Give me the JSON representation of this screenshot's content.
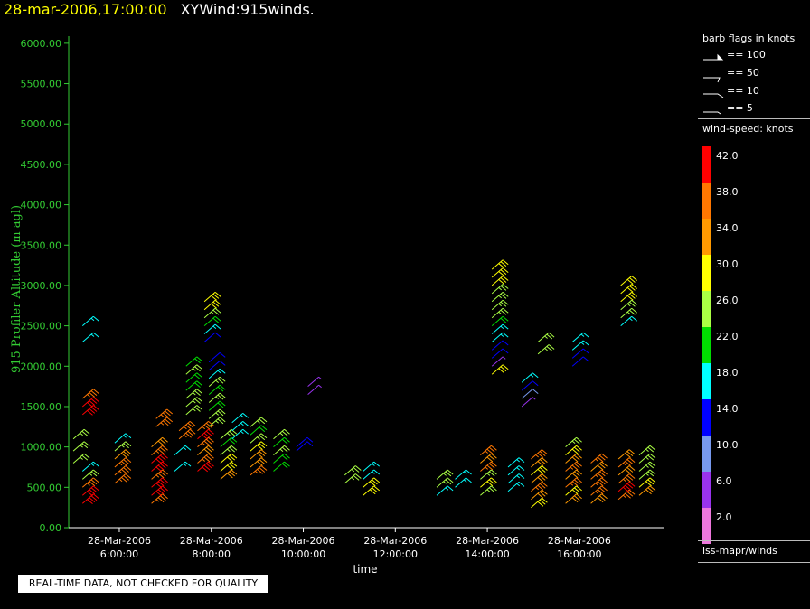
{
  "header": {
    "timestamp": "28-mar-2006,17:00:00",
    "title": "XYWind:915winds."
  },
  "footer_notice": "REAL-TIME DATA, NOT CHECKED FOR QUALITY",
  "legend": {
    "barb_title": "barb flags in knots",
    "barb_entries": [
      "== 100",
      "== 50",
      "== 10",
      "== 5"
    ],
    "speed_title": "wind-speed: knots",
    "speed_labels": [
      "42.0",
      "38.0",
      "34.0",
      "30.0",
      "26.0",
      "22.0",
      "18.0",
      "14.0",
      "10.0",
      "6.0",
      "2.0"
    ],
    "speed_colors": [
      "#ff0000",
      "#ff7700",
      "#ff9900",
      "#ffff00",
      "#aaff44",
      "#00dd00",
      "#00ffff",
      "#0000ff",
      "#7799ee",
      "#9933ee",
      "#ee77dd"
    ],
    "source": "iss-mapr/winds"
  },
  "chart_data": {
    "type": "scatter",
    "title": "",
    "xlabel": "time",
    "ylabel": "915 Profiler Altitude (m agl)",
    "ylim": [
      0,
      6200
    ],
    "xlim_hours": [
      4.9,
      17.85
    ],
    "y_ticks": [
      "0.00",
      "500.00",
      "1000.00",
      "1500.00",
      "2000.00",
      "2500.00",
      "3000.00",
      "3500.00",
      "4000.00",
      "4500.00",
      "5000.00",
      "5500.00",
      "6000.00"
    ],
    "x_ticks": [
      {
        "hour": 6,
        "date": "28-Mar-2006",
        "time": "6:00:00"
      },
      {
        "hour": 8,
        "date": "28-Mar-2006",
        "time": "8:00:00"
      },
      {
        "hour": 10,
        "date": "28-Mar-2006",
        "time": "10:00:00"
      },
      {
        "hour": 12,
        "date": "28-Mar-2006",
        "time": "12:00:00"
      },
      {
        "hour": 14,
        "date": "28-Mar-2006",
        "time": "14:00:00"
      },
      {
        "hour": 16,
        "date": "28-Mar-2006",
        "time": "16:00:00"
      }
    ],
    "profiles": [
      {
        "t": 5.0,
        "alts": [
          800,
          950,
          1100
        ],
        "spd": [
          26,
          26,
          26
        ]
      },
      {
        "t": 5.2,
        "alts": [
          300,
          400,
          500,
          600,
          700
        ],
        "spd": [
          42,
          42,
          38,
          26,
          18
        ]
      },
      {
        "t": 5.2,
        "alts": [
          1400,
          1500,
          1600
        ],
        "spd": [
          42,
          42,
          38
        ]
      },
      {
        "t": 5.2,
        "alts": [
          2300,
          2500
        ],
        "spd": [
          18,
          18
        ]
      },
      {
        "t": 5.9,
        "alts": [
          550,
          650,
          750,
          850,
          950,
          1050
        ],
        "spd": [
          38,
          38,
          38,
          34,
          26,
          18
        ]
      },
      {
        "t": 6.7,
        "alts": [
          300,
          400,
          500,
          600,
          700,
          800,
          900,
          1000
        ],
        "spd": [
          38,
          42,
          42,
          38,
          42,
          42,
          38,
          34
        ]
      },
      {
        "t": 6.8,
        "alts": [
          1250,
          1350
        ],
        "spd": [
          38,
          38
        ]
      },
      {
        "t": 7.2,
        "alts": [
          700,
          900
        ],
        "spd": [
          18,
          18
        ]
      },
      {
        "t": 7.3,
        "alts": [
          1100,
          1200
        ],
        "spd": [
          38,
          38
        ]
      },
      {
        "t": 7.45,
        "alts": [
          1400,
          1500,
          1600,
          1700,
          1800,
          1900,
          2000
        ],
        "spd": [
          26,
          26,
          26,
          22,
          22,
          26,
          22
        ]
      },
      {
        "t": 7.7,
        "alts": [
          700,
          800,
          900,
          1000,
          1100,
          1200
        ],
        "spd": [
          42,
          38,
          34,
          38,
          42,
          38
        ]
      },
      {
        "t": 7.85,
        "alts": [
          2300,
          2400,
          2500,
          2600,
          2700,
          2800
        ],
        "spd": [
          14,
          18,
          22,
          26,
          30,
          30
        ]
      },
      {
        "t": 7.95,
        "alts": [
          1250,
          1350,
          1450,
          1550,
          1650,
          1750,
          1850,
          1950,
          2050
        ],
        "spd": [
          26,
          26,
          22,
          26,
          22,
          26,
          18,
          14,
          14
        ]
      },
      {
        "t": 8.2,
        "alts": [
          600,
          700,
          800,
          900,
          1000,
          1100
        ],
        "spd": [
          34,
          30,
          30,
          26,
          22,
          26
        ]
      },
      {
        "t": 8.45,
        "alts": [
          1100,
          1200,
          1300
        ],
        "spd": [
          18,
          18,
          18
        ]
      },
      {
        "t": 8.85,
        "alts": [
          650,
          750,
          850,
          950,
          1050,
          1150,
          1250
        ],
        "spd": [
          38,
          34,
          34,
          30,
          26,
          22,
          26
        ]
      },
      {
        "t": 9.35,
        "alts": [
          700,
          800,
          900,
          1000,
          1100
        ],
        "spd": [
          22,
          22,
          26,
          22,
          26
        ]
      },
      {
        "t": 9.85,
        "alts": [
          950,
          1000
        ],
        "spd": [
          14,
          14
        ]
      },
      {
        "t": 10.1,
        "alts": [
          1650,
          1750
        ],
        "spd": [
          6,
          6
        ]
      },
      {
        "t": 10.9,
        "alts": [
          550,
          650
        ],
        "spd": [
          26,
          26
        ]
      },
      {
        "t": 11.3,
        "alts": [
          400,
          500,
          600,
          700
        ],
        "spd": [
          30,
          30,
          18,
          18
        ]
      },
      {
        "t": 12.9,
        "alts": [
          400,
          500,
          600
        ],
        "spd": [
          18,
          26,
          26
        ]
      },
      {
        "t": 13.3,
        "alts": [
          500,
          600
        ],
        "spd": [
          18,
          18
        ]
      },
      {
        "t": 13.85,
        "alts": [
          400,
          500,
          600,
          700,
          800,
          900
        ],
        "spd": [
          26,
          30,
          26,
          38,
          34,
          38
        ]
      },
      {
        "t": 14.1,
        "alts": [
          1900,
          2000,
          2100,
          2200,
          2300,
          2400,
          2500,
          2600,
          2700,
          2800,
          2900,
          3000,
          3100,
          3200
        ],
        "spd": [
          30,
          6,
          14,
          14,
          18,
          18,
          22,
          26,
          26,
          26,
          26,
          30,
          30,
          30
        ]
      },
      {
        "t": 14.45,
        "alts": [
          450,
          550,
          650,
          750
        ],
        "spd": [
          18,
          18,
          18,
          18
        ]
      },
      {
        "t": 14.75,
        "alts": [
          1500,
          1600,
          1700,
          1800
        ],
        "spd": [
          6,
          10,
          14,
          18
        ]
      },
      {
        "t": 14.95,
        "alts": [
          250,
          350,
          450,
          550,
          650,
          750,
          850
        ],
        "spd": [
          30,
          34,
          38,
          34,
          30,
          34,
          38
        ]
      },
      {
        "t": 15.1,
        "alts": [
          2150,
          2300
        ],
        "spd": [
          26,
          26
        ]
      },
      {
        "t": 15.7,
        "alts": [
          300,
          400,
          500,
          600,
          700,
          800,
          900,
          1000
        ],
        "spd": [
          34,
          30,
          38,
          34,
          38,
          34,
          30,
          26
        ]
      },
      {
        "t": 15.85,
        "alts": [
          2000,
          2100,
          2200,
          2300
        ],
        "spd": [
          14,
          14,
          18,
          18
        ]
      },
      {
        "t": 16.25,
        "alts": [
          300,
          400,
          500,
          600,
          700,
          800
        ],
        "spd": [
          34,
          38,
          38,
          38,
          34,
          38
        ]
      },
      {
        "t": 16.85,
        "alts": [
          350,
          450,
          550,
          650,
          750,
          850
        ],
        "spd": [
          38,
          42,
          38,
          34,
          38,
          34
        ]
      },
      {
        "t": 16.9,
        "alts": [
          2500,
          2600,
          2700,
          2800,
          2900,
          3000
        ],
        "spd": [
          18,
          26,
          26,
          30,
          30,
          30
        ]
      },
      {
        "t": 17.3,
        "alts": [
          400,
          500,
          600,
          700,
          800,
          900
        ],
        "spd": [
          34,
          30,
          26,
          26,
          26,
          26
        ]
      }
    ]
  }
}
